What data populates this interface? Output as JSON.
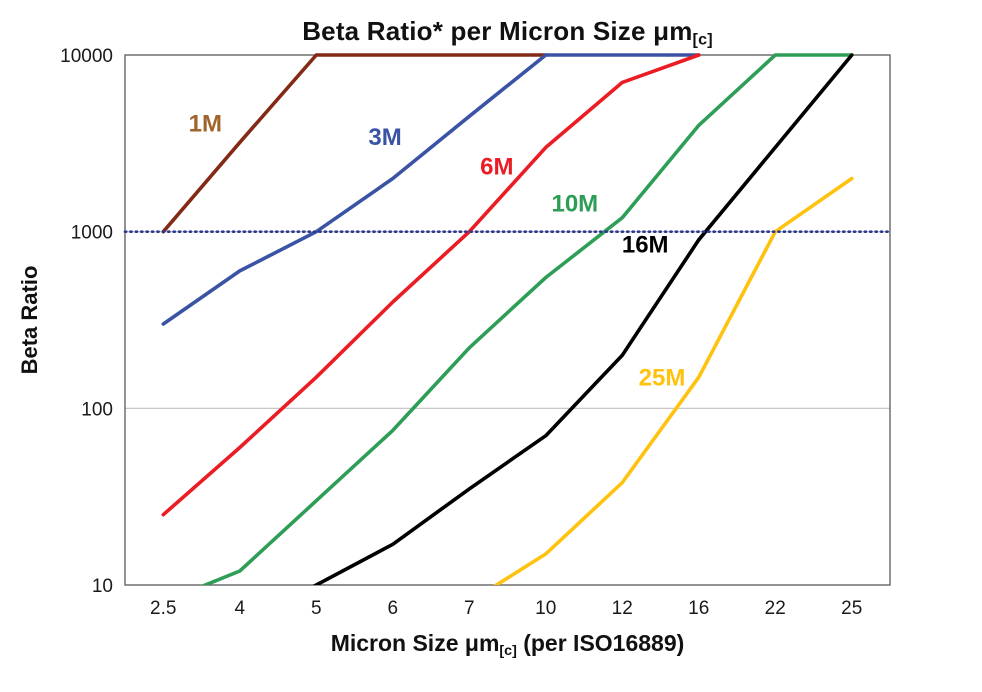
{
  "chart": {
    "title_main": "Beta Ratio* per Micron Size μm",
    "title_sub": "[c]",
    "y_axis_label": "Beta Ratio",
    "x_label_pre": "Micron Size μm",
    "x_label_sub": "[c]",
    "x_label_post": " (per ISO16889)"
  },
  "chart_data": {
    "type": "line",
    "x_categories": [
      "2.5",
      "4",
      "5",
      "6",
      "7",
      "10",
      "12",
      "16",
      "22",
      "25"
    ],
    "y_scale": "log",
    "ylim": [
      10,
      10000
    ],
    "y_ticks": [
      10,
      100,
      1000,
      10000
    ],
    "grid": "horizontal-only",
    "gridline_color": "#bfbfbf",
    "frame_color": "#595959",
    "tick_label_color": "#1a1a1a",
    "reference_line": {
      "value": 1000,
      "color": "#2b3990",
      "style": "dotted"
    },
    "series": [
      {
        "name": "1M",
        "color": "#832a16",
        "label_color": "#a0642d",
        "values": [
          1000,
          3200,
          10000,
          10000,
          10000,
          10000,
          null,
          null,
          null,
          null
        ],
        "label_pos": {
          "x_index": 0.55,
          "value": 3700
        }
      },
      {
        "name": "3M",
        "color": "#3a53a4",
        "label_color": "#3a53a4",
        "values": [
          300,
          600,
          1000,
          2000,
          4500,
          10000,
          10000,
          10000,
          null,
          null
        ],
        "label_pos": {
          "x_index": 2.9,
          "value": 3100
        }
      },
      {
        "name": "6M",
        "color": "#ec1c24",
        "label_color": "#ec1c24",
        "values": [
          25,
          60,
          150,
          400,
          1000,
          3000,
          7000,
          10000,
          null,
          null
        ],
        "label_pos": {
          "x_index": 4.36,
          "value": 2100
        }
      },
      {
        "name": "10M",
        "color": "#2e9e57",
        "label_color": "#2e9e57",
        "values": [
          8,
          12,
          30,
          75,
          220,
          550,
          1200,
          4000,
          10000,
          10000
        ],
        "label_pos": {
          "x_index": 5.38,
          "value": 1300
        }
      },
      {
        "name": "16M",
        "color": "#000000",
        "label_color": "#000000",
        "values": [
          null,
          6,
          10,
          17,
          35,
          70,
          200,
          900,
          3000,
          10000
        ],
        "label_pos": {
          "x_index": 6.3,
          "value": 760
        }
      },
      {
        "name": "25M",
        "color": "#ffc20e",
        "label_color": "#ffc20e",
        "values": [
          null,
          null,
          null,
          null,
          8,
          15,
          38,
          150,
          1000,
          2000
        ],
        "label_pos": {
          "x_index": 6.52,
          "value": 135
        }
      }
    ]
  }
}
